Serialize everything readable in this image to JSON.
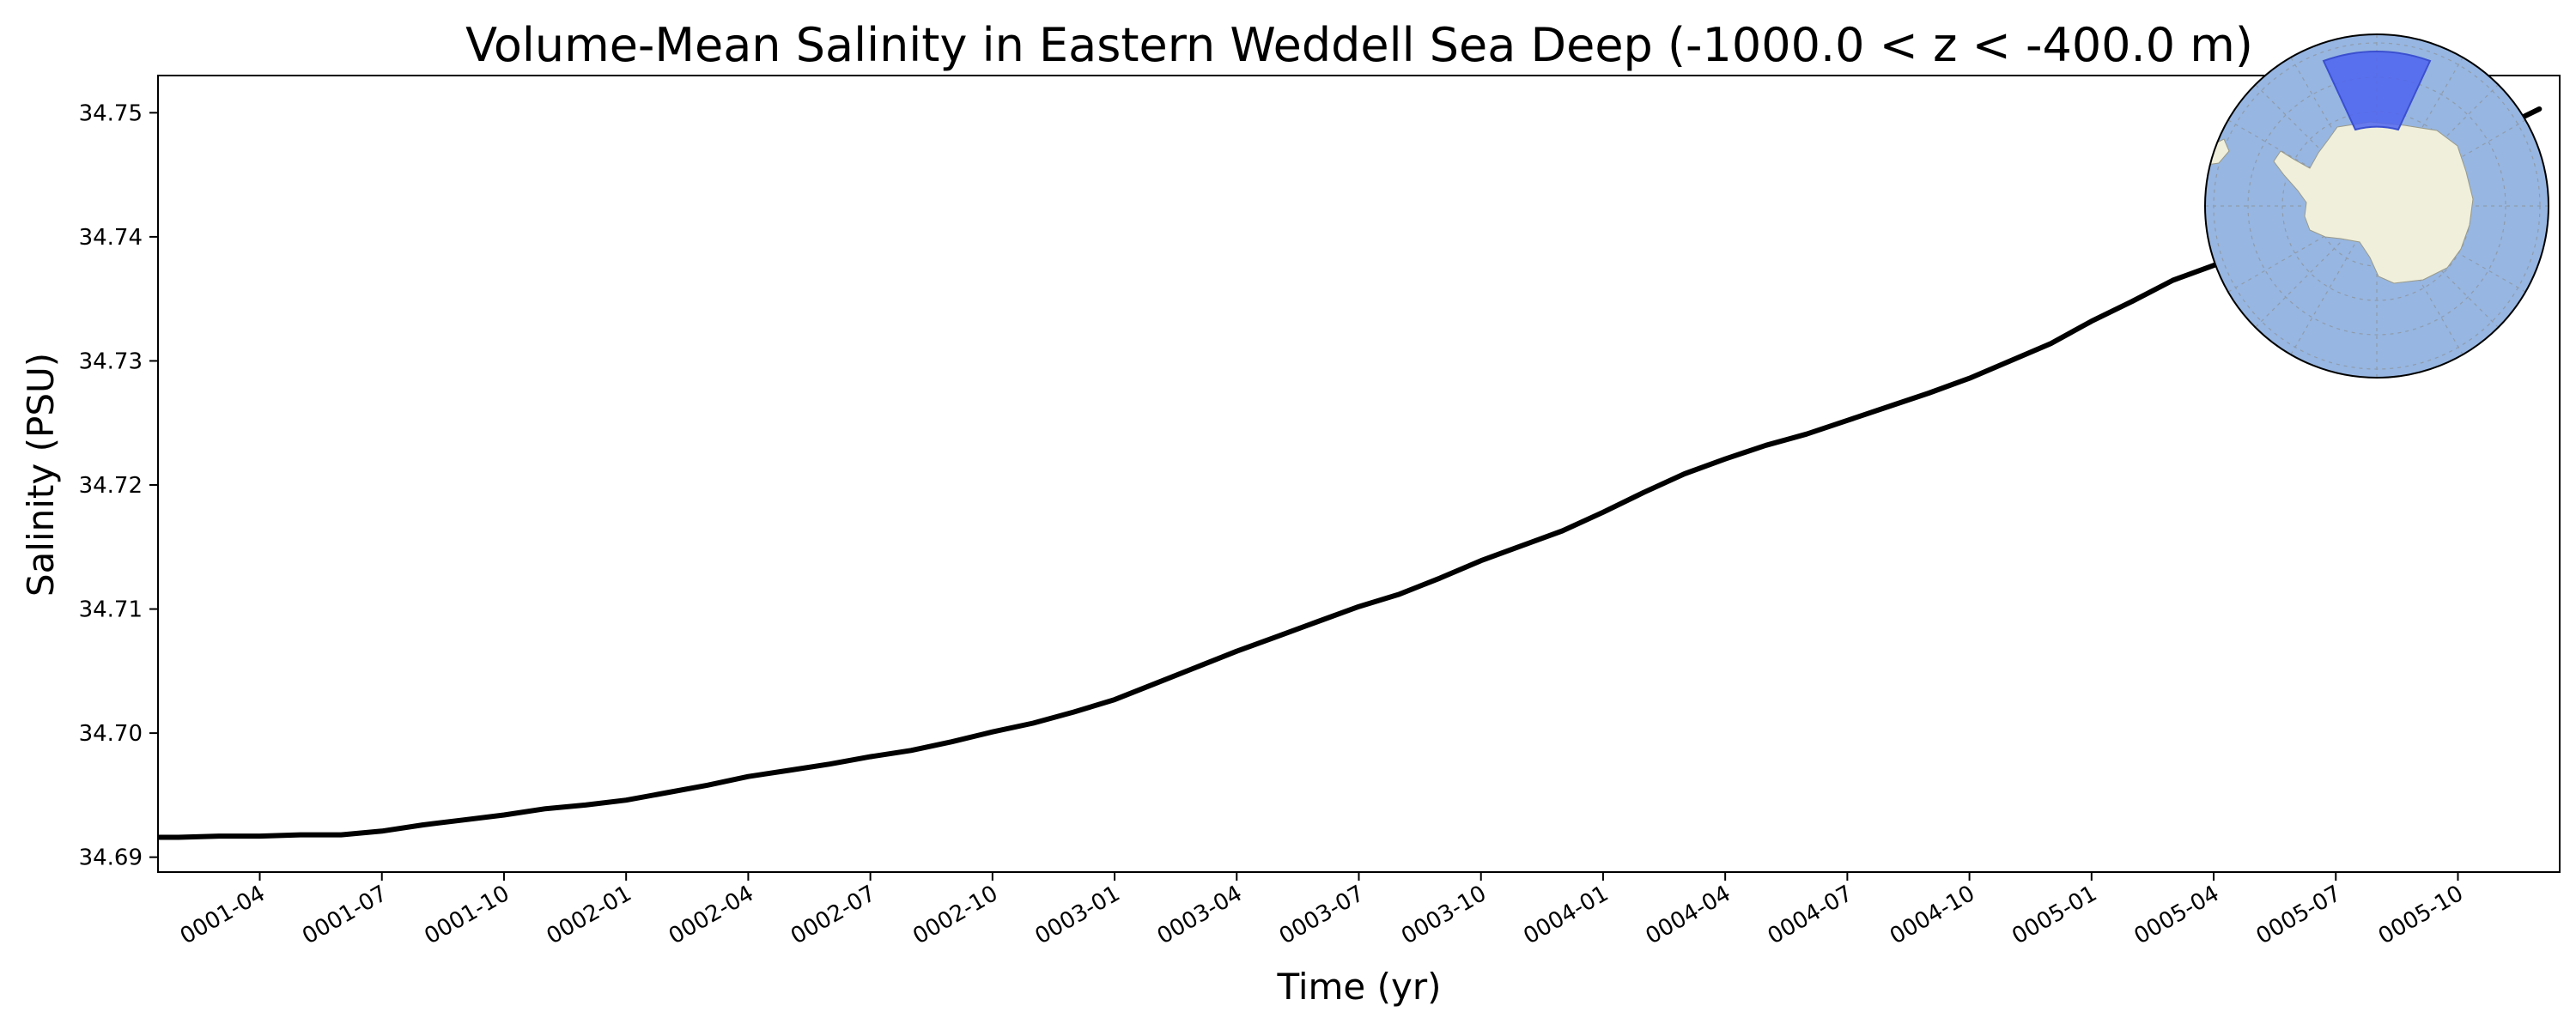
{
  "chart_data": {
    "type": "line",
    "title": "Volume-Mean Salinity in Eastern Weddell Sea Deep (-1000.0 < z < -400.0 m)",
    "xlabel": "Time (yr)",
    "ylabel": "Salinity (PSU)",
    "xlim": [
      "0001-01-16",
      "0005-12-16"
    ],
    "ylim": [
      34.6888,
      34.753
    ],
    "yticks": [
      "34.69",
      "34.70",
      "34.71",
      "34.72",
      "34.73",
      "34.74",
      "34.75"
    ],
    "xticks": [
      "0001-04",
      "0001-07",
      "0001-10",
      "0002-01",
      "0002-04",
      "0002-07",
      "0002-10",
      "0003-01",
      "0003-04",
      "0003-07",
      "0003-10",
      "0004-01",
      "0004-04",
      "0004-07",
      "0004-10",
      "0005-01",
      "0005-04",
      "0005-07",
      "0005-10"
    ],
    "grid": false,
    "legend": "none",
    "line_color": "#000000",
    "series": [
      {
        "x": [
          "0001-01",
          "0001-02",
          "0001-03",
          "0001-04",
          "0001-05",
          "0001-06",
          "0001-07",
          "0001-08",
          "0001-09",
          "0001-10",
          "0001-11",
          "0001-12",
          "0002-01",
          "0002-02",
          "0002-03",
          "0002-04",
          "0002-05",
          "0002-06",
          "0002-07",
          "0002-08",
          "0002-09",
          "0002-10",
          "0002-11",
          "0002-12",
          "0003-01",
          "0003-02",
          "0003-03",
          "0003-04",
          "0003-05",
          "0003-06",
          "0003-07",
          "0003-08",
          "0003-09",
          "0003-10",
          "0003-11",
          "0003-12",
          "0004-01",
          "0004-02",
          "0004-03",
          "0004-04",
          "0004-05",
          "0004-06",
          "0004-07",
          "0004-08",
          "0004-09",
          "0004-10",
          "0004-11",
          "0004-12",
          "0005-01",
          "0005-02",
          "0005-03",
          "0005-04",
          "0005-05",
          "0005-06",
          "0005-07",
          "0005-08",
          "0005-09",
          "0005-10",
          "0005-11",
          "0005-12"
        ],
        "values": [
          34.6916,
          34.6916,
          34.6917,
          34.6917,
          34.6918,
          34.6918,
          34.6921,
          34.6926,
          34.693,
          34.6934,
          34.6939,
          34.6942,
          34.6946,
          34.6952,
          34.6958,
          34.6965,
          34.697,
          34.6975,
          34.6981,
          34.6986,
          34.6993,
          34.7001,
          34.7008,
          34.7017,
          34.7027,
          34.704,
          34.7053,
          34.7066,
          34.7078,
          34.709,
          34.7102,
          34.7112,
          34.7125,
          34.7139,
          34.7151,
          34.7163,
          34.7178,
          34.7194,
          34.7209,
          34.7221,
          34.7232,
          34.7241,
          34.7252,
          34.7263,
          34.7274,
          34.7286,
          34.73,
          34.7314,
          34.7332,
          34.7348,
          34.7365,
          34.7377,
          34.739,
          34.7405,
          34.7422,
          34.7438,
          34.7455,
          34.7472,
          34.7487,
          34.7503
        ]
      }
    ]
  },
  "inset_map": {
    "ocean_color": "#97b6e1",
    "land_color": "#efefdb",
    "region_color": "#4d64f0",
    "region_icon": "region-highlight-icon",
    "map_icon": "antarctica-map-icon"
  }
}
